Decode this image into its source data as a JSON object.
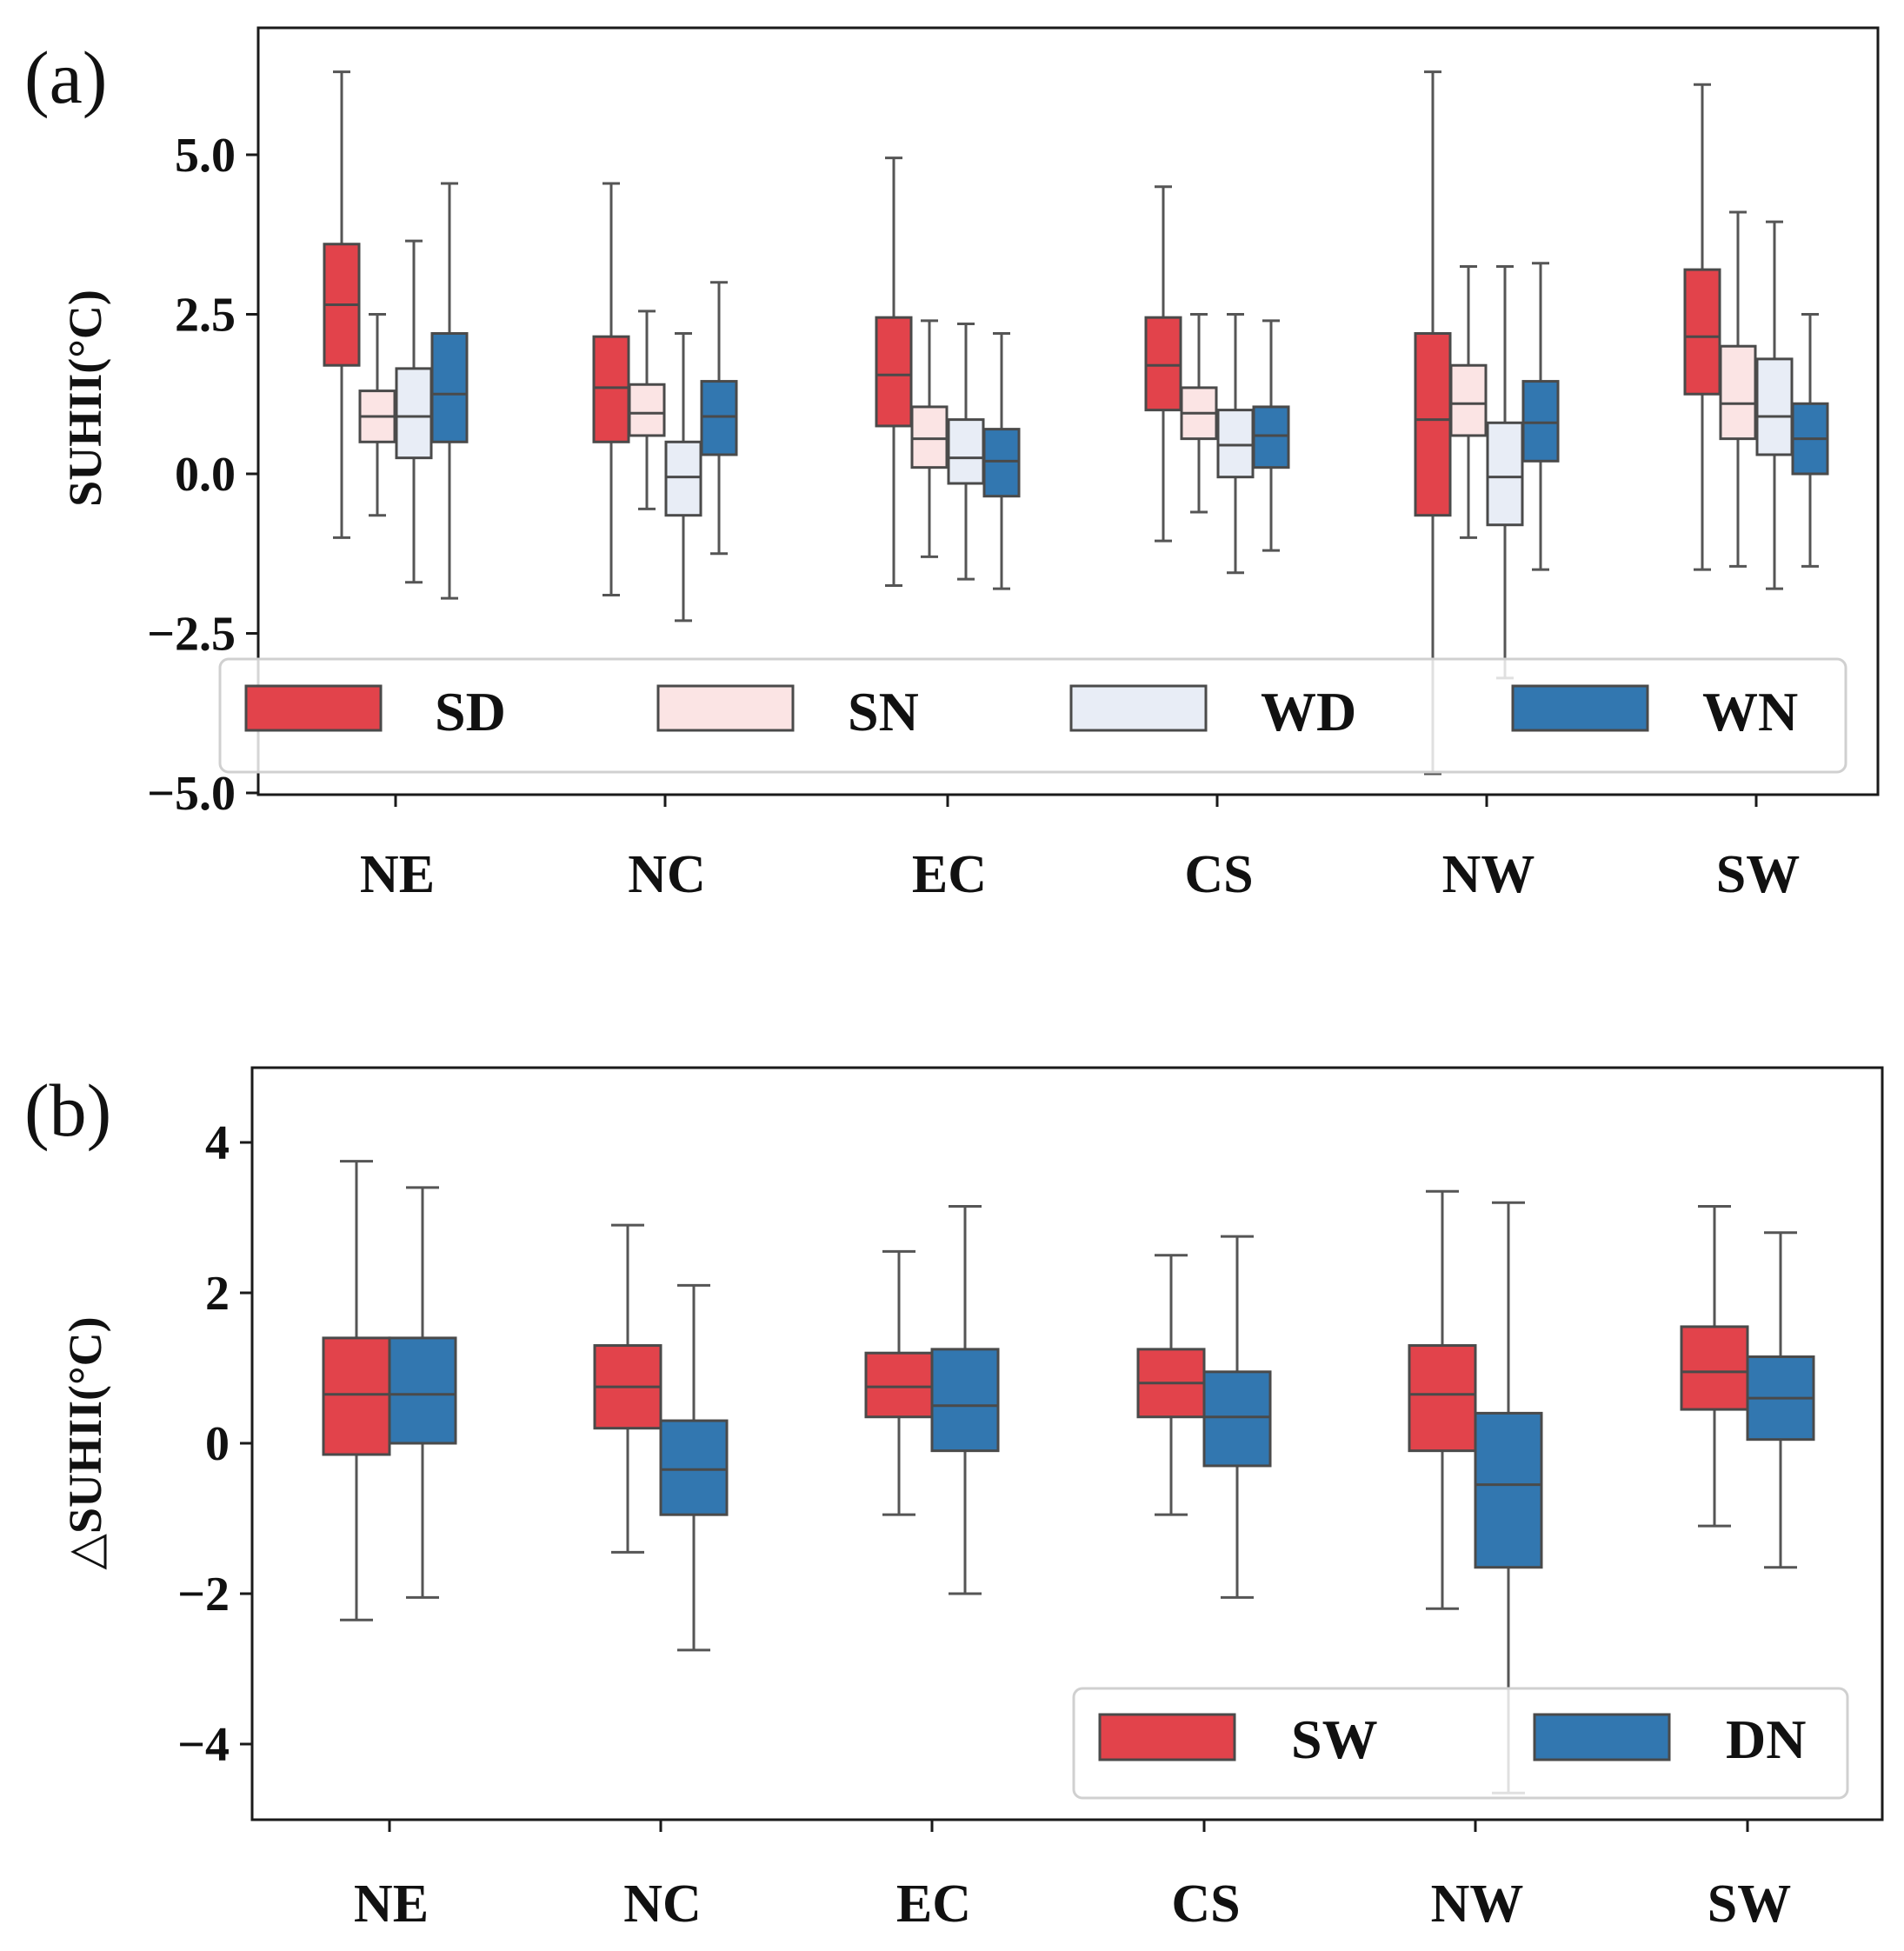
{
  "chart_data": [
    {
      "type": "box",
      "panel_label": "(a)",
      "ylabel": "SUHII(°C)",
      "xlabel": "",
      "ylim": [
        -5.0,
        7.0
      ],
      "yticks": [
        5.0,
        2.5,
        0.0,
        -2.5,
        -5.0
      ],
      "ytick_labels": [
        "5.0",
        "2.5",
        "0.0",
        "−2.5",
        "−5.0"
      ],
      "categories": [
        "NE",
        "NC",
        "EC",
        "CS",
        "NW",
        "SW"
      ],
      "legend_position": "lower-center",
      "series": [
        {
          "name": "SD",
          "color": "#e2434b",
          "boxes": [
            {
              "whislo": -1.0,
              "q1": 1.7,
              "med": 2.65,
              "q3": 3.6,
              "whishi": 6.3
            },
            {
              "whislo": -1.9,
              "q1": 0.5,
              "med": 1.35,
              "q3": 2.15,
              "whishi": 4.55
            },
            {
              "whislo": -1.75,
              "q1": 0.75,
              "med": 1.55,
              "q3": 2.45,
              "whishi": 4.95
            },
            {
              "whislo": -1.05,
              "q1": 1.0,
              "med": 1.7,
              "q3": 2.45,
              "whishi": 4.5
            },
            {
              "whislo": -4.7,
              "q1": -0.65,
              "med": 0.85,
              "q3": 2.2,
              "whishi": 6.3
            },
            {
              "whislo": -1.5,
              "q1": 1.25,
              "med": 2.15,
              "q3": 3.2,
              "whishi": 6.1
            }
          ]
        },
        {
          "name": "SN",
          "color": "#fbe4e4",
          "boxes": [
            {
              "whislo": -0.65,
              "q1": 0.5,
              "med": 0.9,
              "q3": 1.3,
              "whishi": 2.5
            },
            {
              "whislo": -0.55,
              "q1": 0.6,
              "med": 0.95,
              "q3": 1.4,
              "whishi": 2.55
            },
            {
              "whislo": -1.3,
              "q1": 0.1,
              "med": 0.55,
              "q3": 1.05,
              "whishi": 2.4
            },
            {
              "whislo": -0.6,
              "q1": 0.55,
              "med": 0.95,
              "q3": 1.35,
              "whishi": 2.5
            },
            {
              "whislo": -1.0,
              "q1": 0.6,
              "med": 1.1,
              "q3": 1.7,
              "whishi": 3.25
            },
            {
              "whislo": -1.45,
              "q1": 0.55,
              "med": 1.1,
              "q3": 2.0,
              "whishi": 4.1
            }
          ]
        },
        {
          "name": "WD",
          "color": "#e8edf6",
          "boxes": [
            {
              "whislo": -1.7,
              "q1": 0.25,
              "med": 0.9,
              "q3": 1.65,
              "whishi": 3.65
            },
            {
              "whislo": -2.3,
              "q1": -0.65,
              "med": -0.05,
              "q3": 0.5,
              "whishi": 2.2
            },
            {
              "whislo": -1.65,
              "q1": -0.15,
              "med": 0.25,
              "q3": 0.85,
              "whishi": 2.35
            },
            {
              "whislo": -1.55,
              "q1": -0.05,
              "med": 0.45,
              "q3": 1.0,
              "whishi": 2.5
            },
            {
              "whislo": -3.2,
              "q1": -0.8,
              "med": -0.05,
              "q3": 0.8,
              "whishi": 3.25
            },
            {
              "whislo": -1.8,
              "q1": 0.3,
              "med": 0.9,
              "q3": 1.8,
              "whishi": 3.95
            }
          ]
        },
        {
          "name": "WN",
          "color": "#3277b0",
          "boxes": [
            {
              "whislo": -1.95,
              "q1": 0.5,
              "med": 1.25,
              "q3": 2.2,
              "whishi": 4.55
            },
            {
              "whislo": -1.25,
              "q1": 0.3,
              "med": 0.9,
              "q3": 1.45,
              "whishi": 3.0
            },
            {
              "whislo": -1.8,
              "q1": -0.35,
              "med": 0.2,
              "q3": 0.7,
              "whishi": 2.2
            },
            {
              "whislo": -1.2,
              "q1": 0.1,
              "med": 0.6,
              "q3": 1.05,
              "whishi": 2.4
            },
            {
              "whislo": -1.5,
              "q1": 0.2,
              "med": 0.8,
              "q3": 1.45,
              "whishi": 3.3
            },
            {
              "whislo": -1.45,
              "q1": 0.0,
              "med": 0.55,
              "q3": 1.1,
              "whishi": 2.5
            }
          ]
        }
      ]
    },
    {
      "type": "box",
      "panel_label": "(b)",
      "ylabel": "△SUHII(°C)",
      "xlabel": "",
      "ylim": [
        -5.0,
        5.0
      ],
      "yticks": [
        4,
        2,
        0,
        -2,
        -4
      ],
      "ytick_labels": [
        "4",
        "2",
        "0",
        "−2",
        "−4"
      ],
      "categories": [
        "NE",
        "NC",
        "EC",
        "CS",
        "NW",
        "SW"
      ],
      "legend_position": "lower-right",
      "series": [
        {
          "name": "SW",
          "color": "#e2434b",
          "boxes": [
            {
              "whislo": -2.35,
              "q1": -0.15,
              "med": 0.65,
              "q3": 1.4,
              "whishi": 3.75
            },
            {
              "whislo": -1.45,
              "q1": 0.2,
              "med": 0.75,
              "q3": 1.3,
              "whishi": 2.9
            },
            {
              "whislo": -0.95,
              "q1": 0.35,
              "med": 0.75,
              "q3": 1.2,
              "whishi": 2.55
            },
            {
              "whislo": -0.95,
              "q1": 0.35,
              "med": 0.8,
              "q3": 1.25,
              "whishi": 2.5
            },
            {
              "whislo": -2.2,
              "q1": -0.1,
              "med": 0.65,
              "q3": 1.3,
              "whishi": 3.35
            },
            {
              "whislo": -1.1,
              "q1": 0.45,
              "med": 0.95,
              "q3": 1.55,
              "whishi": 3.15
            }
          ]
        },
        {
          "name": "DN",
          "color": "#3277b0",
          "boxes": [
            {
              "whislo": -2.05,
              "q1": 0.0,
              "med": 0.65,
              "q3": 1.4,
              "whishi": 3.4
            },
            {
              "whislo": -2.75,
              "q1": -0.95,
              "med": -0.35,
              "q3": 0.3,
              "whishi": 2.1
            },
            {
              "whislo": -2.0,
              "q1": -0.1,
              "med": 0.5,
              "q3": 1.25,
              "whishi": 3.15
            },
            {
              "whislo": -2.05,
              "q1": -0.3,
              "med": 0.35,
              "q3": 0.95,
              "whishi": 2.75
            },
            {
              "whislo": -4.65,
              "q1": -1.65,
              "med": -0.55,
              "q3": 0.4,
              "whishi": 3.2
            },
            {
              "whislo": -1.65,
              "q1": 0.05,
              "med": 0.6,
              "q3": 1.15,
              "whishi": 2.8
            }
          ]
        }
      ]
    }
  ]
}
